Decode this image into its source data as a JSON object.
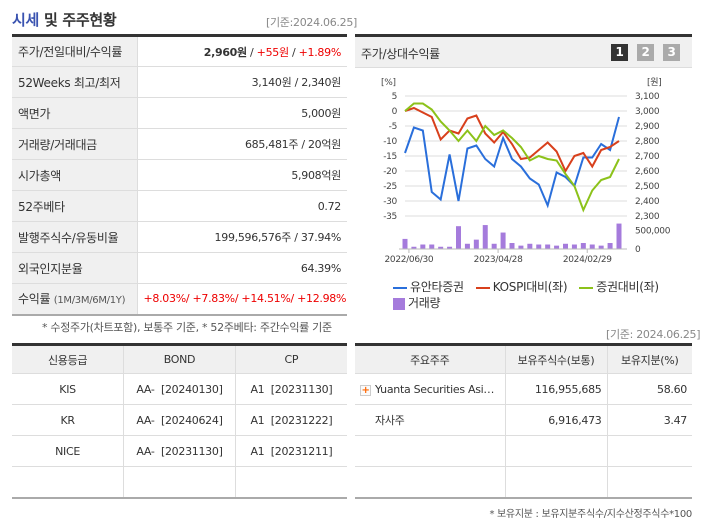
{
  "header": {
    "title_highlight": "시세",
    "title_rest": " 및 주주현황",
    "as_of": "[기준:2024.06.25]"
  },
  "info_rows": [
    {
      "label": "주가/전일대비/수익률",
      "price": "2,960원",
      "sep1": " / ",
      "change": "+55원",
      "sep2": " / ",
      "rate": "+1.89%"
    },
    {
      "label": "52Weeks 최고/최저",
      "value": "3,140원 / 2,340원"
    },
    {
      "label": "액면가",
      "value": "5,000원"
    },
    {
      "label": "거래량/거래대금",
      "value": "685,481주 / 20억원"
    },
    {
      "label": "시가총액",
      "value": "5,908억원"
    },
    {
      "label": "52주베타",
      "value": "0.72"
    },
    {
      "label": "발행주식수/유동비율",
      "value": "199,596,576주 / 37.94%"
    },
    {
      "label": "외국인지분율",
      "value": "64.39%"
    },
    {
      "label": "수익률",
      "label_sub": "(1M/3M/6M/1Y)",
      "value": "+8.03%/ +7.83%/ +14.51%/ +12.98%"
    }
  ],
  "info_note": "* 수정주가(차트포함), 보통주 기준, * 52주베타: 주간수익률 기준",
  "chart_panel": {
    "title": "주가/상대수익률",
    "pages": [
      "1",
      "2",
      "3"
    ],
    "active_page": "1"
  },
  "chart_data": {
    "type": "line",
    "left_unit": "[%]",
    "right_unit": "[원]",
    "left_ticks": [
      5,
      0,
      -5,
      -10,
      -15,
      -20,
      -25,
      -30,
      -35
    ],
    "right_ticks": [
      "3,100",
      "3,000",
      "2,900",
      "2,800",
      "2,700",
      "2,600",
      "2,500",
      "2,400",
      "2,300"
    ],
    "ylim_left": [
      -35,
      5
    ],
    "ylim_right": [
      2300,
      3100
    ],
    "x_labels": [
      "2022/06/30",
      "2023/04/28",
      "2024/02/29"
    ],
    "grid": true,
    "series": [
      {
        "name": "유안타증권",
        "color": "#2a6fdb",
        "values": [
          -14,
          -5.5,
          -6.5,
          -27,
          -29.5,
          -14.5,
          -30,
          -12.5,
          -11.5,
          -16,
          -18.5,
          -9,
          -16,
          -18.5,
          -22.5,
          -24.5,
          -31.5,
          -20.5,
          -22,
          -25,
          -15.5,
          -15.5,
          -11,
          -13,
          -2
        ]
      },
      {
        "name": "KOSPI대비(좌)",
        "color": "#d8401c",
        "values": [
          0,
          1,
          -0.5,
          -2,
          -9.5,
          -6.5,
          -7.5,
          -2.5,
          -1.5,
          -7.5,
          -10.5,
          -7,
          -11,
          -16,
          -15.5,
          -13,
          -10.5,
          -13.5,
          -20,
          -15,
          -14,
          -18.5,
          -13,
          -12,
          -10
        ]
      },
      {
        "name": "증권대비(좌)",
        "color": "#8cc21a",
        "values": [
          0,
          2.5,
          2.5,
          0.5,
          -3.5,
          -6.5,
          -10,
          -6.5,
          -10,
          -5,
          -8,
          -6.5,
          -9,
          -12,
          -16.5,
          -15,
          -16,
          -16.5,
          -21,
          -25,
          -33,
          -26.5,
          -23,
          -22,
          -16
        ]
      }
    ],
    "volume": {
      "name": "거래량",
      "color": "#a57bdc",
      "ticks": [
        "500,000",
        "0"
      ],
      "ylim": [
        0,
        600000
      ],
      "values": [
        270000,
        60000,
        120000,
        120000,
        60000,
        60000,
        610000,
        140000,
        250000,
        640000,
        140000,
        440000,
        160000,
        90000,
        140000,
        120000,
        120000,
        90000,
        140000,
        120000,
        160000,
        120000,
        90000,
        160000,
        680000
      ]
    }
  },
  "chart_asof": "[기준: 2024.06.25]",
  "credit": {
    "headers": [
      "신용등급",
      "BOND",
      "CP"
    ],
    "rows": [
      [
        "KIS",
        "AA-  [20240130]",
        "A1  [20231130]"
      ],
      [
        "KR",
        "AA-  [20240624]",
        "A1  [20231222]"
      ],
      [
        "NICE",
        "AA-  [20231130]",
        "A1  [20231211]"
      ],
      [
        "",
        "",
        ""
      ]
    ]
  },
  "holders": {
    "headers": [
      "주요주주",
      "보유주식수(보통)",
      "보유지분(%)"
    ],
    "rows": [
      {
        "name": "Yuanta Securities Asi…",
        "expandable": true,
        "shares": "116,955,685",
        "pct": "58.60"
      },
      {
        "name": "자사주",
        "expandable": false,
        "shares": "6,916,473",
        "pct": "3.47"
      },
      {
        "name": "",
        "shares": "",
        "pct": ""
      },
      {
        "name": "",
        "shares": "",
        "pct": ""
      }
    ]
  },
  "holders_note": "* 보유지분 : 보유지분주식수/지수산정주식수*100"
}
